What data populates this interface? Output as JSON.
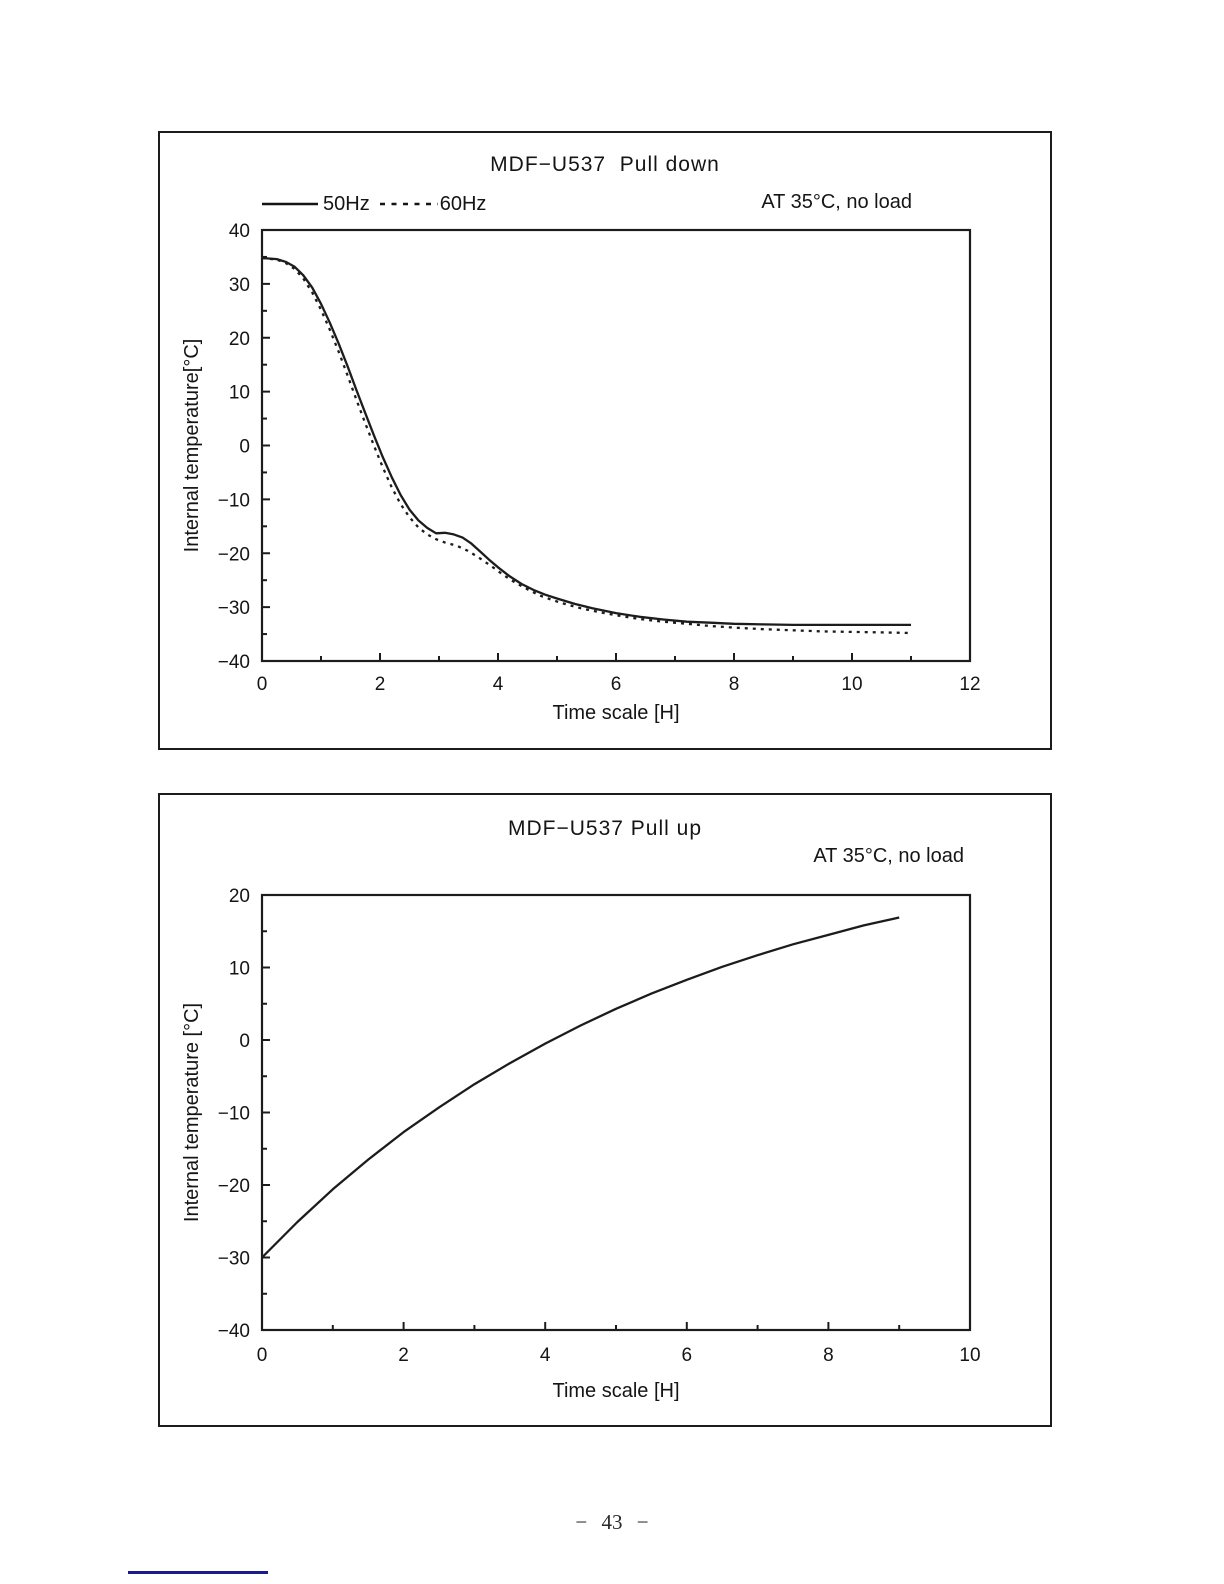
{
  "page": {
    "footer_page_number": "− 43 −"
  },
  "chart_data": [
    {
      "type": "line",
      "title": "MDF−U537  Pull down",
      "annotation": "AT 35°C, no load",
      "xlabel": "Time scale [H]",
      "ylabel": "Internal temperature[°C]",
      "xlim": [
        0,
        12
      ],
      "ylim": [
        -40,
        40
      ],
      "x_major": 2,
      "x_minor": 1,
      "y_major": 10,
      "y_minor": 5,
      "grid": false,
      "legend_position": "top-left",
      "legend": [
        {
          "label": "50Hz",
          "style": "solid"
        },
        {
          "label": "60Hz",
          "style": "dotted"
        }
      ],
      "series": [
        {
          "name": "50Hz",
          "style": "solid",
          "points": [
            [
              0,
              34.8
            ],
            [
              0.25,
              34.6
            ],
            [
              0.4,
              34.1
            ],
            [
              0.55,
              33.2
            ],
            [
              0.7,
              31.6
            ],
            [
              0.85,
              29.3
            ],
            [
              1,
              26.3
            ],
            [
              1.15,
              22.8
            ],
            [
              1.3,
              18.9
            ],
            [
              1.45,
              14.7
            ],
            [
              1.6,
              10.3
            ],
            [
              1.75,
              6
            ],
            [
              1.9,
              1.8
            ],
            [
              2.05,
              -2.2
            ],
            [
              2.2,
              -5.9
            ],
            [
              2.35,
              -9.2
            ],
            [
              2.5,
              -11.9
            ],
            [
              2.65,
              -13.9
            ],
            [
              2.8,
              -15.3
            ],
            [
              2.95,
              -16.3
            ],
            [
              3.1,
              -16.2
            ],
            [
              3.25,
              -16.5
            ],
            [
              3.4,
              -17.1
            ],
            [
              3.55,
              -18.2
            ],
            [
              3.7,
              -19.7
            ],
            [
              3.85,
              -21.2
            ],
            [
              4,
              -22.6
            ],
            [
              4.2,
              -24.3
            ],
            [
              4.4,
              -25.7
            ],
            [
              4.6,
              -26.8
            ],
            [
              4.8,
              -27.7
            ],
            [
              5,
              -28.4
            ],
            [
              5.3,
              -29.4
            ],
            [
              5.6,
              -30.2
            ],
            [
              6,
              -31.1
            ],
            [
              6.4,
              -31.8
            ],
            [
              6.8,
              -32.3
            ],
            [
              7.2,
              -32.7
            ],
            [
              7.6,
              -32.9
            ],
            [
              8,
              -33.1
            ],
            [
              8.5,
              -33.2
            ],
            [
              9,
              -33.3
            ],
            [
              9.5,
              -33.3
            ],
            [
              10,
              -33.3
            ],
            [
              10.5,
              -33.3
            ],
            [
              11,
              -33.3
            ]
          ]
        },
        {
          "name": "60Hz",
          "style": "dotted",
          "points": [
            [
              0,
              34.8
            ],
            [
              0.25,
              34.5
            ],
            [
              0.4,
              33.9
            ],
            [
              0.55,
              32.8
            ],
            [
              0.7,
              31
            ],
            [
              0.85,
              28.4
            ],
            [
              1,
              25.2
            ],
            [
              1.15,
              21.5
            ],
            [
              1.3,
              17.4
            ],
            [
              1.45,
              13
            ],
            [
              1.6,
              8.5
            ],
            [
              1.75,
              4.1
            ],
            [
              1.9,
              -0.1
            ],
            [
              2.05,
              -4.1
            ],
            [
              2.2,
              -7.8
            ],
            [
              2.35,
              -10.9
            ],
            [
              2.5,
              -13.3
            ],
            [
              2.65,
              -15.2
            ],
            [
              2.8,
              -16.5
            ],
            [
              2.95,
              -17.4
            ],
            [
              3.1,
              -18
            ],
            [
              3.3,
              -18.6
            ],
            [
              3.5,
              -19.6
            ],
            [
              3.7,
              -21
            ],
            [
              3.9,
              -22.5
            ],
            [
              4.1,
              -24.1
            ],
            [
              4.3,
              -25.5
            ],
            [
              4.5,
              -26.7
            ],
            [
              4.7,
              -27.8
            ],
            [
              4.9,
              -28.6
            ],
            [
              5.1,
              -29.3
            ],
            [
              5.4,
              -30.2
            ],
            [
              5.7,
              -30.9
            ],
            [
              6,
              -31.5
            ],
            [
              6.4,
              -32.2
            ],
            [
              6.8,
              -32.7
            ],
            [
              7.2,
              -33.1
            ],
            [
              7.6,
              -33.5
            ],
            [
              8,
              -33.8
            ],
            [
              8.5,
              -34.1
            ],
            [
              9,
              -34.3
            ],
            [
              9.5,
              -34.5
            ],
            [
              10,
              -34.6
            ],
            [
              10.5,
              -34.7
            ],
            [
              11,
              -34.8
            ]
          ]
        }
      ]
    },
    {
      "type": "line",
      "title": "MDF−U537 Pull up",
      "annotation": "AT 35°C, no load",
      "xlabel": "Time scale [H]",
      "ylabel": "Internal temperature [°C]",
      "xlim": [
        0,
        10
      ],
      "ylim": [
        -40,
        20
      ],
      "x_major": 2,
      "x_minor": 1,
      "y_major": 10,
      "y_minor": 5,
      "grid": false,
      "legend": [],
      "series": [
        {
          "name": "pull-up",
          "style": "solid",
          "points": [
            [
              0,
              -30
            ],
            [
              0.5,
              -25.1
            ],
            [
              1,
              -20.6
            ],
            [
              1.5,
              -16.5
            ],
            [
              2,
              -12.7
            ],
            [
              2.5,
              -9.3
            ],
            [
              3,
              -6.1
            ],
            [
              3.5,
              -3.2
            ],
            [
              4,
              -0.5
            ],
            [
              4.5,
              2
            ],
            [
              5,
              4.3
            ],
            [
              5.5,
              6.4
            ],
            [
              6,
              8.3
            ],
            [
              6.5,
              10.1
            ],
            [
              7,
              11.7
            ],
            [
              7.5,
              13.2
            ],
            [
              8,
              14.5
            ],
            [
              8.5,
              15.8
            ],
            [
              9,
              16.9
            ]
          ]
        }
      ]
    }
  ]
}
